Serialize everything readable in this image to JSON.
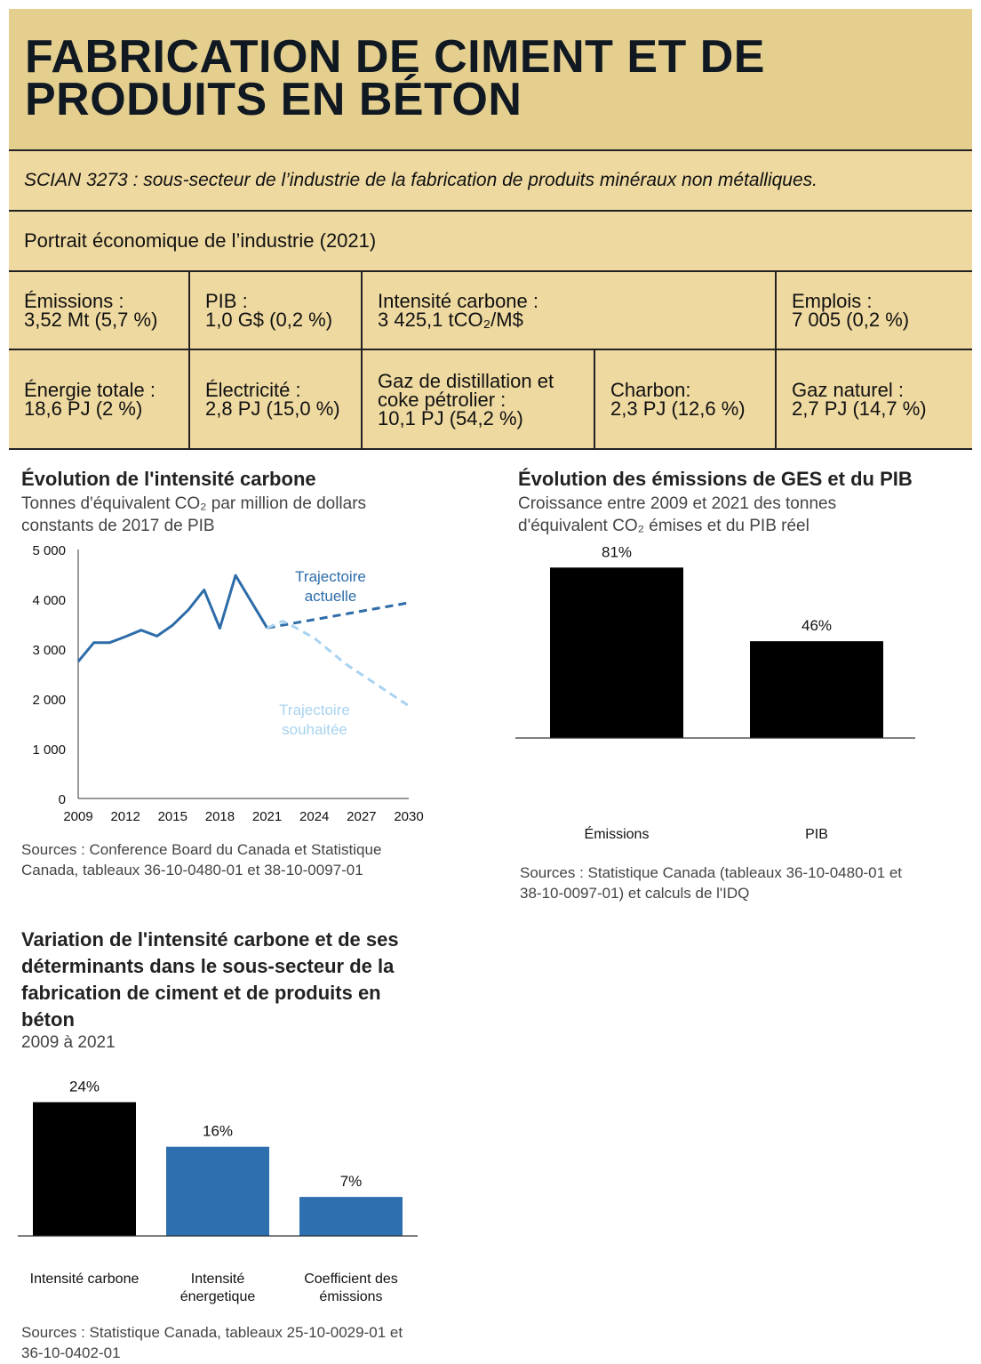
{
  "header": {
    "title": "FABRICATION DE CIMENT ET DE\nPRODUITS EN BÉTON",
    "scian": "SCIAN 3273 : sous-secteur de l’industrie de la fabrication de produits minéraux non métalliques.",
    "portrait": "Portrait économique de l’industrie (2021)"
  },
  "indicators": {
    "row1": [
      {
        "label": "Émissions :",
        "value": "3,52 Mt (5,7 %)"
      },
      {
        "label": "PIB :",
        "value": "1,0 G$ (0,2 %)"
      },
      {
        "label": "Intensité carbone :",
        "value": "3 425,1 tCO₂/M$"
      },
      {
        "label": "Emplois :",
        "value": "7 005 (0,2 %)"
      }
    ],
    "row2": [
      {
        "label": "Énergie totale :",
        "value": "18,6 PJ (2 %)"
      },
      {
        "label": "Électricité :",
        "value": "2,8 PJ (15,0 %)"
      },
      {
        "label": "Gaz de distillation et coke pétrolier :",
        "value": "10,1 PJ (54,2 %)"
      },
      {
        "label": "Charbon:",
        "value": "2,3 PJ (12,6 %)"
      },
      {
        "label": "Gaz naturel :",
        "value": "2,7 PJ (14,7 %)"
      }
    ]
  },
  "colors": {
    "title_band": "#e5cf8f",
    "panel": "#eed9a0",
    "line_actual": "#2d6ca8",
    "line_target": "#a9d3f0",
    "bar_black": "#000000",
    "bar_blue": "#2e6fb0"
  },
  "chart_data": [
    {
      "type": "line",
      "title": "Évolution de l'intensité carbone",
      "subtitle": "Tonnes d'équivalent CO₂ par million de dollars constants de 2017 de PIB",
      "x_ticks": [
        "2009",
        "2012",
        "2015",
        "2018",
        "2021",
        "2024",
        "2027",
        "2030"
      ],
      "y_ticks": [
        "0",
        "1 000",
        "2 000",
        "3 000",
        "4 000",
        "5 000"
      ],
      "xlim": [
        2009,
        2030
      ],
      "ylim": [
        0,
        5000
      ],
      "series": [
        {
          "name": "",
          "x": [
            2009,
            2010,
            2011,
            2012,
            2013,
            2014,
            2015,
            2016,
            2017,
            2018,
            2019,
            2020,
            2021
          ],
          "y": [
            2750,
            3130,
            3130,
            3250,
            3380,
            3260,
            3480,
            3790,
            4190,
            3420,
            4480,
            3950,
            3425
          ]
        },
        {
          "name": "Trajectoire actuelle",
          "x": [
            2021,
            2030
          ],
          "y": [
            3425,
            3930
          ],
          "style": "dashed"
        },
        {
          "name": "Trajectoire souhaitée",
          "x": [
            2021,
            2022,
            2023,
            2024,
            2025,
            2026,
            2027,
            2028,
            2029,
            2030
          ],
          "y": [
            3425,
            3560,
            3400,
            3220,
            2960,
            2700,
            2490,
            2280,
            2070,
            1860
          ],
          "style": "dashed"
        }
      ],
      "annotations": [
        "Trajectoire\nactuelle",
        "Trajectoire\nsouhaitée"
      ],
      "sources": "Sources : Conference Board du Canada et Statistique Canada, tableaux 36-10-0480-01 et 38-10-0097-01"
    },
    {
      "type": "bar",
      "title": "Évolution des émissions de GES et du PIB",
      "subtitle": "Croissance entre 2009 et 2021 des tonnes d'équivalent CO₂ émises et du PIB réel",
      "categories": [
        "Émissions",
        "PIB"
      ],
      "values": [
        81,
        46
      ],
      "data_labels": [
        "81%",
        "46%"
      ],
      "ylim": [
        0,
        90
      ],
      "bar_colors": [
        "#000000",
        "#000000"
      ],
      "sources": "Sources : Statistique Canada (tableaux 36-10-0480-01 et 38-10-0097-01) et calculs de l'IDQ"
    },
    {
      "type": "bar",
      "title": "Variation de l'intensité carbone et de ses déterminants dans le sous-secteur de la fabrication de ciment et de produits en béton",
      "subtitle": "2009 à 2021",
      "categories": [
        "Intensité carbone",
        "Intensité énergetique",
        "Coefficient des émissions"
      ],
      "values": [
        24,
        16,
        7
      ],
      "data_labels": [
        "24%",
        "16%",
        "7%"
      ],
      "ylim": [
        0,
        26
      ],
      "bar_colors": [
        "#000000",
        "#2e6fb0",
        "#2e6fb0"
      ],
      "sources": "Sources : Statistique Canada, tableaux 25-10-0029-01 et 36-10-0402-01"
    }
  ]
}
